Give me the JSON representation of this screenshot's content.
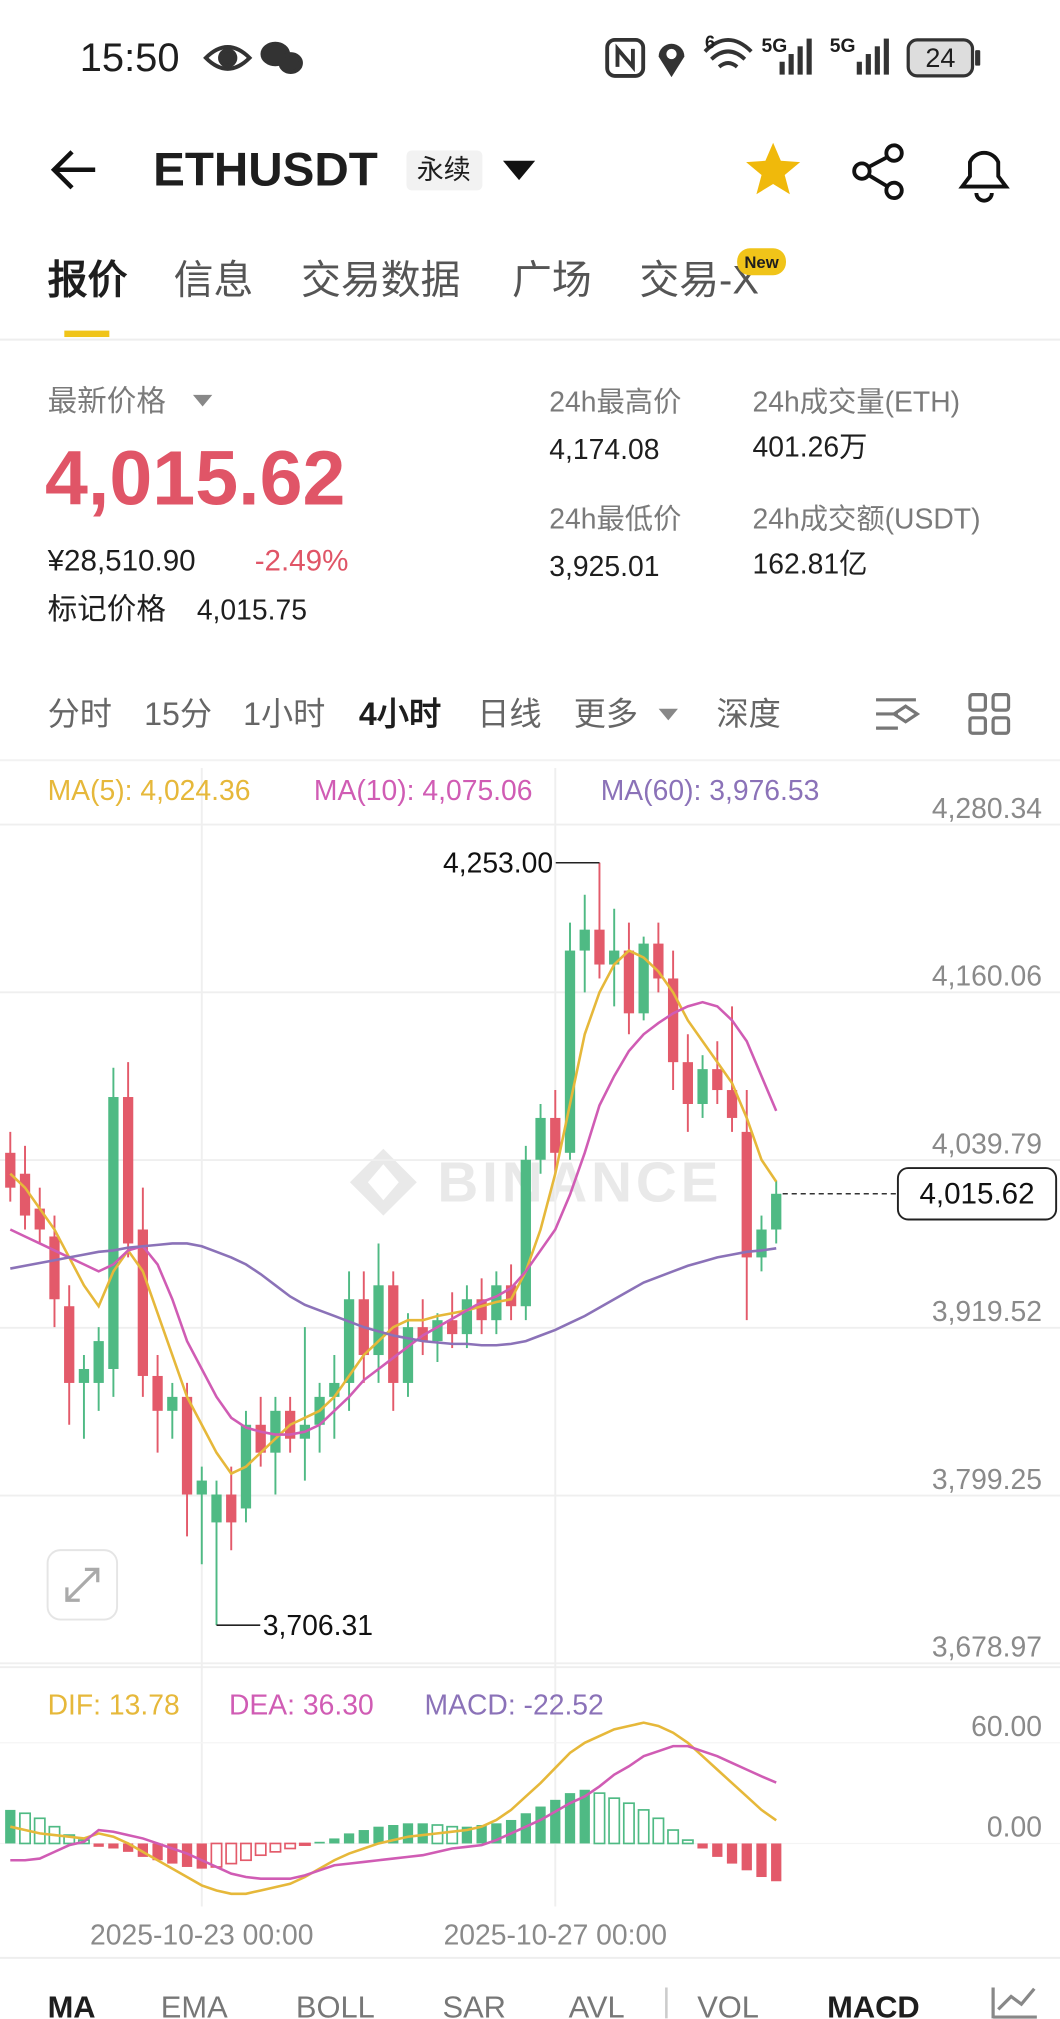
{
  "status_bar": {
    "time": "15:50",
    "networks": [
      "5G",
      "5G"
    ],
    "battery": "24"
  },
  "header": {
    "symbol": "ETHUSDT",
    "contract": "永续"
  },
  "tabs": [
    "报价",
    "信息",
    "交易数据",
    "广场",
    "交易-X"
  ],
  "new_badge": "New",
  "price": {
    "label": "最新价格",
    "last": "4,015.62",
    "cny": "¥28,510.90",
    "change": "-2.49%",
    "mark_label": "标记价格",
    "mark": "4,015.75"
  },
  "stats": [
    {
      "label": "24h最高价",
      "value": "4,174.08"
    },
    {
      "label": "24h成交量(ETH)",
      "value": "401.26万"
    },
    {
      "label": "24h最低价",
      "value": "3,925.01"
    },
    {
      "label": "24h成交额(USDT)",
      "value": "162.81亿"
    }
  ],
  "intervals": [
    "分时",
    "15分",
    "1小时",
    "4小时",
    "日线",
    "更多",
    "深度"
  ],
  "chart_data": [
    {
      "type": "candlestick",
      "watermark": "BINANCE",
      "up_color": "#4fba84",
      "down_color": "#e35a6a",
      "categories": [
        null,
        null,
        null,
        null,
        null,
        null,
        null,
        null,
        null,
        null,
        null,
        null,
        null,
        "2025-10-23 00:00",
        null,
        null,
        null,
        null,
        null,
        null,
        null,
        null,
        null,
        null,
        null,
        null,
        null,
        null,
        null,
        null,
        null,
        null,
        null,
        null,
        null,
        null,
        null,
        "2025-10-27 00:00",
        null,
        null,
        null,
        null,
        null,
        null,
        null,
        null,
        null,
        null,
        null,
        null,
        null,
        null,
        null
      ],
      "candles": [
        {
          "open": 4045,
          "high": 4060,
          "low": 4010,
          "close": 4020
        },
        {
          "open": 4030,
          "high": 4050,
          "low": 3990,
          "close": 4000
        },
        {
          "open": 4005,
          "high": 4020,
          "low": 3980,
          "close": 3990
        },
        {
          "open": 3985,
          "high": 4000,
          "low": 3920,
          "close": 3940
        },
        {
          "open": 3935,
          "high": 3950,
          "low": 3850,
          "close": 3880
        },
        {
          "open": 3880,
          "high": 3900,
          "low": 3840,
          "close": 3890
        },
        {
          "open": 3880,
          "high": 3920,
          "low": 3860,
          "close": 3910
        },
        {
          "open": 3890,
          "high": 4106,
          "low": 3870,
          "close": 4085
        },
        {
          "open": 4085,
          "high": 4110,
          "low": 3970,
          "close": 3980
        },
        {
          "open": 3990,
          "high": 4020,
          "low": 3870,
          "close": 3885
        },
        {
          "open": 3885,
          "high": 3900,
          "low": 3830,
          "close": 3860
        },
        {
          "open": 3860,
          "high": 3880,
          "low": 3840,
          "close": 3870
        },
        {
          "open": 3870,
          "high": 3880,
          "low": 3770,
          "close": 3800
        },
        {
          "open": 3800,
          "high": 3820,
          "low": 3750,
          "close": 3810
        },
        {
          "open": 3780,
          "high": 3810,
          "low": 3706.31,
          "close": 3800
        },
        {
          "open": 3800,
          "high": 3820,
          "low": 3760,
          "close": 3780
        },
        {
          "open": 3790,
          "high": 3860,
          "low": 3780,
          "close": 3850
        },
        {
          "open": 3850,
          "high": 3870,
          "low": 3820,
          "close": 3830
        },
        {
          "open": 3830,
          "high": 3870,
          "low": 3800,
          "close": 3860
        },
        {
          "open": 3860,
          "high": 3870,
          "low": 3830,
          "close": 3840
        },
        {
          "open": 3840,
          "high": 3920,
          "low": 3810,
          "close": 3850
        },
        {
          "open": 3850,
          "high": 3880,
          "low": 3830,
          "close": 3870
        },
        {
          "open": 3870,
          "high": 3900,
          "low": 3840,
          "close": 3880
        },
        {
          "open": 3880,
          "high": 3960,
          "low": 3860,
          "close": 3940
        },
        {
          "open": 3940,
          "high": 3960,
          "low": 3880,
          "close": 3900
        },
        {
          "open": 3900,
          "high": 3980,
          "low": 3880,
          "close": 3950
        },
        {
          "open": 3950,
          "high": 3960,
          "low": 3860,
          "close": 3880
        },
        {
          "open": 3880,
          "high": 3930,
          "low": 3870,
          "close": 3920
        },
        {
          "open": 3920,
          "high": 3940,
          "low": 3900,
          "close": 3910
        },
        {
          "open": 3910,
          "high": 3930,
          "low": 3895,
          "close": 3925
        },
        {
          "open": 3925,
          "high": 3945,
          "low": 3905,
          "close": 3915
        },
        {
          "open": 3915,
          "high": 3950,
          "low": 3905,
          "close": 3940
        },
        {
          "open": 3940,
          "high": 3955,
          "low": 3915,
          "close": 3925
        },
        {
          "open": 3925,
          "high": 3960,
          "low": 3915,
          "close": 3950
        },
        {
          "open": 3950,
          "high": 3965,
          "low": 3925,
          "close": 3935
        },
        {
          "open": 3935,
          "high": 4050,
          "low": 3925,
          "close": 4040
        },
        {
          "open": 4040,
          "high": 4080,
          "low": 4030,
          "close": 4070
        },
        {
          "open": 4070,
          "high": 4090,
          "low": 4030,
          "close": 4045
        },
        {
          "open": 4045,
          "high": 4210,
          "low": 4040,
          "close": 4190
        },
        {
          "open": 4190,
          "high": 4230,
          "low": 4160,
          "close": 4205
        },
        {
          "open": 4205,
          "high": 4253,
          "low": 4170,
          "close": 4180
        },
        {
          "open": 4180,
          "high": 4220,
          "low": 4150,
          "close": 4190
        },
        {
          "open": 4190,
          "high": 4210,
          "low": 4130,
          "close": 4145
        },
        {
          "open": 4145,
          "high": 4200,
          "low": 4140,
          "close": 4195
        },
        {
          "open": 4195,
          "high": 4210,
          "low": 4160,
          "close": 4170
        },
        {
          "open": 4170,
          "high": 4190,
          "low": 4090,
          "close": 4110
        },
        {
          "open": 4110,
          "high": 4130,
          "low": 4060,
          "close": 4080
        },
        {
          "open": 4080,
          "high": 4115,
          "low": 4070,
          "close": 4105
        },
        {
          "open": 4105,
          "high": 4125,
          "low": 4080,
          "close": 4090
        },
        {
          "open": 4090,
          "high": 4150,
          "low": 4060,
          "close": 4070
        },
        {
          "open": 4060,
          "high": 4090,
          "low": 3925,
          "close": 3970
        },
        {
          "open": 3970,
          "high": 4000,
          "low": 3960,
          "close": 3990
        },
        {
          "open": 3990,
          "high": 4025,
          "low": 3980,
          "close": 4015.62
        }
      ],
      "series": [
        {
          "name": "MA(5)",
          "legend": "MA(5): 4,024.36",
          "color": "#e6b83a",
          "values": [
            4030,
            4020,
            4005,
            3990,
            3970,
            3950,
            3935,
            3960,
            3975,
            3960,
            3930,
            3900,
            3870,
            3850,
            3830,
            3815,
            3820,
            3830,
            3840,
            3850,
            3855,
            3860,
            3870,
            3885,
            3900,
            3910,
            3920,
            3925,
            3925,
            3928,
            3930,
            3932,
            3935,
            3938,
            3940,
            3960,
            3990,
            4030,
            4080,
            4130,
            4160,
            4180,
            4190,
            4185,
            4175,
            4160,
            4140,
            4125,
            4110,
            4095,
            4070,
            4040,
            4024.36
          ]
        },
        {
          "name": "MA(10)",
          "legend": "MA(10): 4,075.06",
          "color": "#d05cb4",
          "values": [
            3990,
            3985,
            3980,
            3975,
            3970,
            3965,
            3960,
            3965,
            3975,
            3978,
            3965,
            3940,
            3910,
            3890,
            3870,
            3855,
            3848,
            3845,
            3843,
            3843,
            3845,
            3850,
            3860,
            3870,
            3882,
            3890,
            3898,
            3906,
            3914,
            3920,
            3926,
            3932,
            3938,
            3942,
            3948,
            3960,
            3975,
            3990,
            4015,
            4045,
            4079,
            4100,
            4118,
            4130,
            4138,
            4145,
            4150,
            4153,
            4150,
            4140,
            4125,
            4100,
            4075.06
          ]
        },
        {
          "name": "MA(60)",
          "legend": "MA(60): 3,976.53",
          "color": "#8b72b8",
          "values": [
            3962,
            3964,
            3966,
            3968,
            3970,
            3972,
            3974,
            3975,
            3977,
            3978,
            3979,
            3980,
            3980,
            3978,
            3974,
            3970,
            3965,
            3958,
            3950,
            3942,
            3936,
            3932,
            3928,
            3924,
            3920,
            3917,
            3914,
            3912,
            3910,
            3909,
            3908,
            3908,
            3907,
            3907,
            3908,
            3910,
            3914,
            3918,
            3923,
            3928,
            3934,
            3940,
            3946,
            3952,
            3956,
            3960,
            3964,
            3967,
            3970,
            3972,
            3974,
            3975,
            3976.53
          ]
        }
      ],
      "max_label": "4,253.00",
      "min_label": "3,706.31",
      "last_price_label": "4,015.62",
      "ylim": [
        3678.97,
        4280.34
      ],
      "yticks": [
        {
          "value": 4280.34,
          "label": "4,280.34"
        },
        {
          "value": 4160.06,
          "label": "4,160.06"
        },
        {
          "value": 4039.79,
          "label": "4,039.79"
        },
        {
          "value": 3919.52,
          "label": "3,919.52"
        },
        {
          "value": 3799.25,
          "label": "3,799.25"
        },
        {
          "value": 3678.97,
          "label": "3,678.97"
        }
      ],
      "grid": true
    },
    {
      "type": "bar",
      "up_color": "#4fba84",
      "down_color": "#e35a6a",
      "values": [
        20,
        18,
        15,
        10,
        5,
        2,
        -2,
        -3,
        -5,
        -8,
        -10,
        -12,
        -14,
        -15,
        -14,
        -12,
        -10,
        -7,
        -5,
        -3,
        -1,
        1,
        3,
        6,
        8,
        10,
        11,
        12,
        12,
        11,
        10,
        10,
        11,
        12,
        14,
        18,
        22,
        26,
        30,
        32,
        30,
        27,
        24,
        20,
        15,
        8,
        2,
        -3,
        -8,
        -12,
        -16,
        -20,
        -22.52
      ],
      "macd_legend": {
        "text": "MACD: -22.52",
        "color": "#8b72b8"
      },
      "series": [
        {
          "name": "DIF",
          "legend": "DIF: 13.78",
          "color": "#e6b83a",
          "values": [
            10,
            8,
            6,
            5,
            4,
            3,
            6,
            4,
            0,
            -5,
            -10,
            -15,
            -20,
            -25,
            -28,
            -30,
            -30,
            -28,
            -26,
            -24,
            -20,
            -15,
            -10,
            -6,
            -3,
            0,
            2,
            4,
            5,
            6,
            7,
            8,
            10,
            14,
            20,
            28,
            36,
            45,
            54,
            60,
            64,
            68,
            70,
            72,
            70,
            66,
            60,
            52,
            44,
            36,
            28,
            20,
            13.78
          ]
        },
        {
          "name": "DEA",
          "legend": "DEA: 36.30",
          "color": "#d05cb4",
          "values": [
            -10,
            -10,
            -9,
            -5,
            -1,
            1,
            8,
            7,
            5,
            3,
            0,
            -3,
            -6,
            -10,
            -14,
            -18,
            -20,
            -21,
            -21,
            -21,
            -19,
            -16,
            -13,
            -12,
            -11,
            -10,
            -9,
            -8,
            -7,
            -5,
            -3,
            -2,
            -1,
            2,
            6,
            10,
            14,
            19,
            24,
            28,
            34,
            41,
            46,
            52,
            55,
            58,
            58,
            55,
            52,
            48,
            44,
            40,
            36.3
          ]
        }
      ],
      "ylim": [
        -36,
        102
      ],
      "yticks": [
        {
          "value": 60,
          "label": "60.00"
        },
        {
          "value": 0,
          "label": "0.00"
        }
      ]
    }
  ],
  "indicator_tabs": [
    "MA",
    "EMA",
    "BOLL",
    "SAR",
    "AVL",
    "VOL",
    "MACD"
  ]
}
